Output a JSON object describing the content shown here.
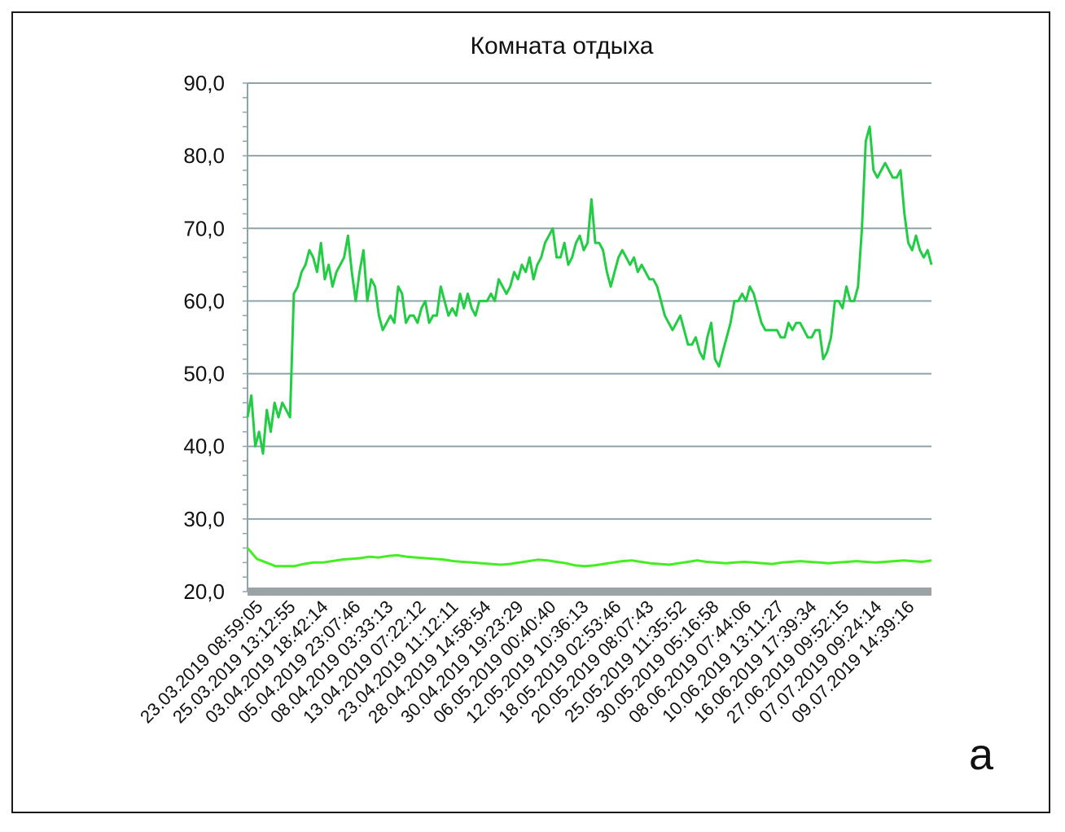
{
  "chart_data": {
    "type": "line",
    "title": "Комната отдыха",
    "panel_label": "а",
    "xlabel": "",
    "ylabel": "",
    "ylim": [
      20,
      90
    ],
    "yticks": [
      "20,0",
      "30,0",
      "40,0",
      "50,0",
      "60,0",
      "70,0",
      "80,0",
      "90,0"
    ],
    "x_tick_labels": [
      "23.03.2019 08:59:05",
      "25.03.2019 13:12:55",
      "03.04.2019 18:42:14",
      "05.04.2019 23:07:46",
      "08.04.2019 03:33:13",
      "13.04.2019 07:22:12",
      "23.04.2019 11:12:11",
      "28.04.2019 14:58:54",
      "30.04.2019 19:23:29",
      "06.05.2019 00:40:40",
      "12.05.2019 10:36:13",
      "18.05.2019 02:53:46",
      "20.05.2019 08:07:43",
      "25.05.2019 11:35:52",
      "30.05.2019 05:16:58",
      "08.06.2019 07:44:06",
      "10.06.2019 13:11:27",
      "16.06.2019 17:39:34",
      "27.06.2019 09:52:15",
      "07.07.2019 09:24:14",
      "09.07.2019 14:39:16"
    ],
    "grid": true,
    "legend": "none",
    "colors": {
      "upper_series": "#22cc44",
      "lower_series": "#44ee22",
      "grid": "#8fa3a8",
      "axis_band": "#9aa3a5"
    },
    "series": [
      {
        "values": [
          44,
          47,
          40,
          42,
          39,
          45,
          42,
          46,
          44,
          46,
          45,
          44,
          61,
          62,
          64,
          65,
          67,
          66,
          64,
          68,
          63,
          65,
          62,
          64,
          65,
          66,
          69,
          64,
          60,
          64,
          67,
          60,
          63,
          62,
          58,
          56,
          57,
          58,
          57,
          62,
          61,
          57,
          58,
          58,
          57,
          59,
          60,
          57,
          58,
          58,
          62,
          60,
          58,
          59,
          58,
          61,
          59,
          61,
          59,
          58,
          60,
          60,
          60,
          61,
          60,
          63,
          62,
          61,
          62,
          64,
          63,
          65,
          64,
          66,
          63,
          65,
          66,
          68,
          69,
          70,
          66,
          66,
          68,
          65,
          66,
          68,
          69,
          67,
          68,
          74,
          68,
          68,
          67,
          64,
          62,
          64,
          66,
          67,
          66,
          65,
          66,
          64,
          65,
          64,
          63,
          63,
          62,
          60,
          58,
          57,
          56,
          57,
          58,
          56,
          54,
          54,
          55,
          53,
          52,
          55,
          57,
          52,
          51,
          53,
          55,
          57,
          60,
          60,
          61,
          60,
          62,
          61,
          59,
          57,
          56,
          56,
          56,
          56,
          55,
          55,
          57,
          56,
          57,
          57,
          56,
          55,
          55,
          56,
          56,
          52,
          53,
          55,
          60,
          60,
          59,
          62,
          60,
          60,
          62,
          70,
          82,
          84,
          78,
          77,
          78,
          79,
          78,
          77,
          77,
          78,
          72,
          68,
          67,
          69,
          67,
          66,
          67,
          65
        ]
      },
      {
        "values": [
          26,
          24.5,
          24,
          23.5,
          23.5,
          23.5,
          23.8,
          24,
          24,
          24.2,
          24.4,
          24.5,
          24.6,
          24.8,
          24.7,
          24.9,
          25,
          24.8,
          24.7,
          24.6,
          24.5,
          24.4,
          24.2,
          24.1,
          24,
          23.9,
          23.8,
          23.7,
          23.8,
          24,
          24.2,
          24.4,
          24.3,
          24.1,
          23.9,
          23.6,
          23.5,
          23.6,
          23.8,
          24,
          24.2,
          24.3,
          24.1,
          23.9,
          23.8,
          23.7,
          23.9,
          24.1,
          24.3,
          24.1,
          24,
          23.9,
          24,
          24.1,
          24,
          23.9,
          23.8,
          24,
          24.1,
          24.2,
          24.1,
          24,
          23.9,
          24,
          24.1,
          24.2,
          24.1,
          24,
          24.1,
          24.2,
          24.3,
          24.2,
          24.1,
          24.3
        ]
      }
    ]
  }
}
